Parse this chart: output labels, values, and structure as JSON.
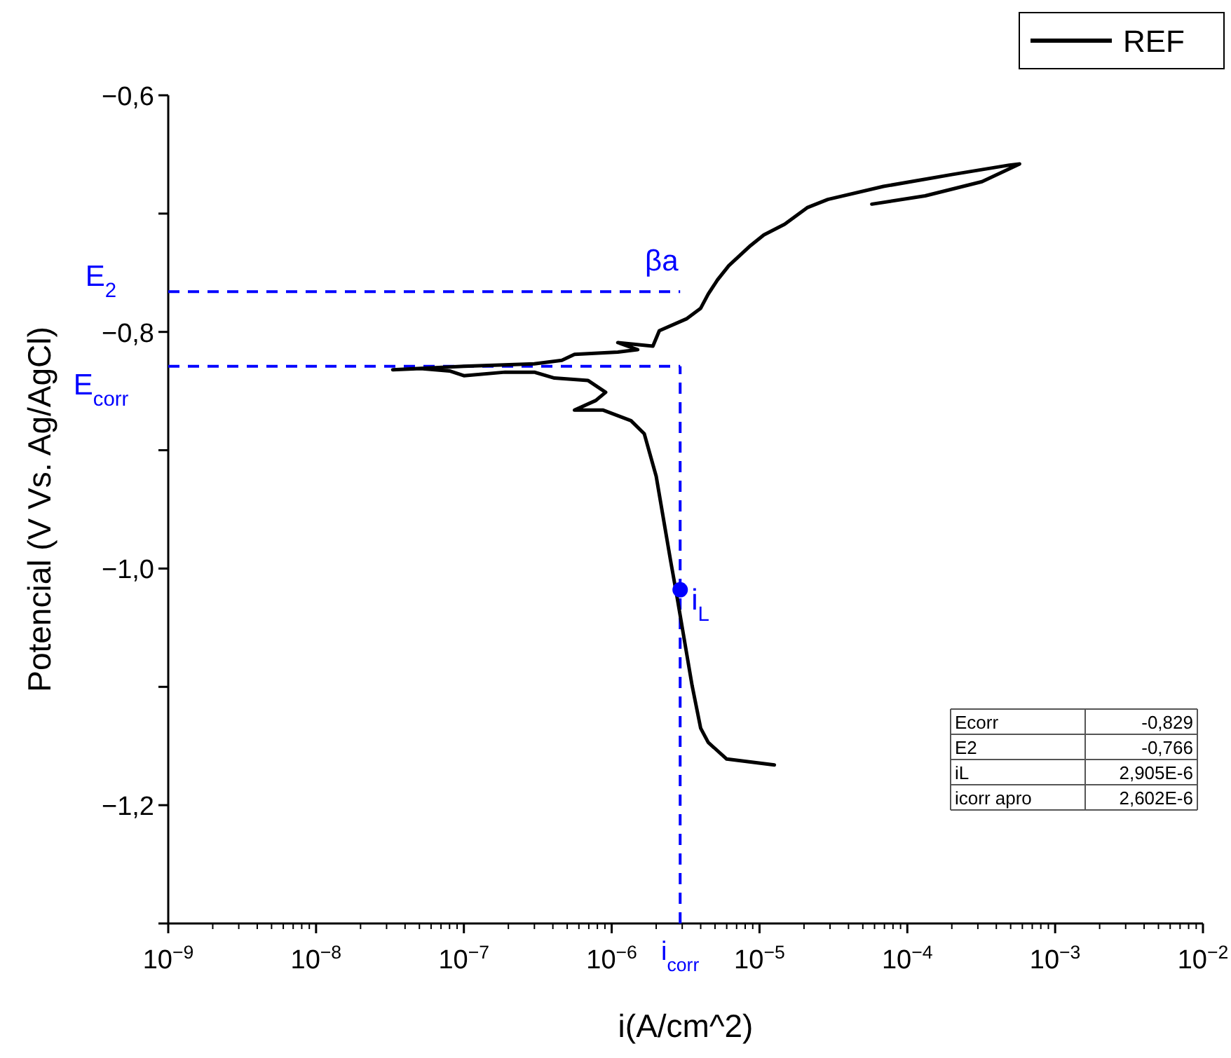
{
  "chart_data": {
    "type": "line",
    "xlabel": "i(A/cm^2)",
    "ylabel": "Potencial (V Vs. Ag/AgCl)",
    "log": "x",
    "xlim": [
      1e-09,
      0.01
    ],
    "ylim": [
      -1.3,
      -0.6
    ],
    "xticks": [
      {
        "value": 1e-09,
        "label": "10$^{−9}$"
      },
      {
        "value": 1e-08,
        "label": "10$^{−8}$"
      },
      {
        "value": 1e-07,
        "label": "10$^{−7}$"
      },
      {
        "value": 1e-06,
        "label": "10$^{−6}$"
      },
      {
        "value": 1e-05,
        "label": "10$^{−5}$"
      },
      {
        "value": 0.0001,
        "label": "10$^{−4}$"
      },
      {
        "value": 0.001,
        "label": "10$^{−3}$"
      },
      {
        "value": 0.01,
        "label": "10$^{−2}$"
      }
    ],
    "yticks": [
      {
        "value": -0.6,
        "label": "−0,6"
      },
      {
        "value": -0.7,
        "label": null
      },
      {
        "value": -0.8,
        "label": "−0,8"
      },
      {
        "value": -0.9,
        "label": null
      },
      {
        "value": -1.0,
        "label": "−1,0"
      },
      {
        "value": -1.1,
        "label": null
      },
      {
        "value": -1.2,
        "label": "−1,2"
      },
      {
        "value": -1.3,
        "label": null
      }
    ],
    "legend": "top right",
    "line_style": "solid",
    "marker": "none",
    "series": [
      {
        "name": "REF",
        "color": "#000000",
        "x": [
          1.26e-05,
          6e-06,
          4.5e-06,
          4e-06,
          3.5e-06,
          2.75e-06,
          2.5e-06,
          2e-06,
          1.66e-06,
          1.35e-06,
          8.7e-07,
          5.6e-07,
          7.8e-07,
          9.1e-07,
          6.9e-07,
          4.1e-07,
          3e-07,
          1.9e-07,
          1e-07,
          8e-08,
          5.1e-08,
          3.3e-08,
          1e-07,
          3e-07,
          4.6e-07,
          5.6e-07,
          1.1e-06,
          1.5e-06,
          1.1e-06,
          1.9e-06,
          2.1e-06,
          3.2e-06,
          4e-06,
          4.5e-06,
          5.2e-06,
          6.2e-06,
          8.7e-06,
          1.07e-05,
          1.48e-05,
          2.1e-05,
          2.9e-05,
          6.9e-05,
          0.0002,
          0.00049,
          0.000575,
          0.00032,
          0.000132,
          5.75e-05
        ],
        "values": [
          -1.166,
          -1.161,
          -1.147,
          -1.135,
          -1.099,
          -1.022,
          -0.993,
          -0.922,
          -0.886,
          -0.875,
          -0.866,
          -0.866,
          -0.858,
          -0.851,
          -0.841,
          -0.839,
          -0.834,
          -0.834,
          -0.837,
          -0.833,
          -0.831,
          -0.832,
          -0.829,
          -0.827,
          -0.824,
          -0.819,
          -0.817,
          -0.815,
          -0.809,
          -0.812,
          -0.799,
          -0.789,
          -0.78,
          -0.768,
          -0.756,
          -0.744,
          -0.727,
          -0.718,
          -0.709,
          -0.695,
          -0.688,
          -0.677,
          -0.667,
          -0.659,
          -0.658,
          -0.673,
          -0.685,
          -0.692
        ]
      },
      {
        "type": "scatter",
        "color": "#0000ff",
        "marker": "circle",
        "x": [
          2.905e-06
        ],
        "values": [
          -1.018
        ]
      }
    ],
    "ref_lines": [
      {
        "axis": "y",
        "value": -0.766,
        "label": "E$_{2}$",
        "color": "#0000ff",
        "line_style": "dashed"
      },
      {
        "axis": "y",
        "value": -0.829,
        "label": "E$_{corr}$",
        "color": "#0000ff",
        "line_style": "dashed"
      },
      {
        "axis": "x",
        "value": 2.905e-06,
        "label": "i$_{corr}$",
        "color": "#0000ff",
        "line_style": "dashed"
      }
    ],
    "annotations": [
      "βa",
      {
        "text": "i$_{L}$",
        "x": 2.905e-06,
        "y": -1.018
      },
      "Ecorr",
      "-0,829",
      "E2",
      "-0,766",
      "iL",
      "2,905E-6",
      "icorr apro",
      "2,602E-6"
    ]
  }
}
